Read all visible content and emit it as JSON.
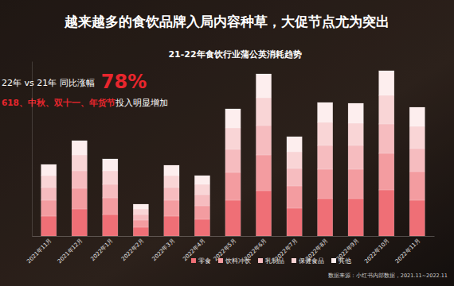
{
  "chart_data": {
    "type": "bar",
    "title": "越来越多的食饮品牌入局内容种草，大促节点尤为突出",
    "subtitle": "21-22年食饮行业蒲公英消耗趋势",
    "annotations": [
      {
        "text": "22年 vs 21年 同比涨幅"
      },
      {
        "text": "78%"
      },
      {
        "text": "618、中秋、双十一、年货节"
      },
      {
        "text": "投入明显增加"
      },
      {
        "text": "数据来源：小红书内部数据，2021.11~2022.11"
      }
    ],
    "categories": [
      "2021年11月",
      "2021年12月",
      "2022年1月",
      "2022年2月",
      "2022年3月",
      "2022年4月",
      "2022年5月",
      "2022年6月",
      "2022年7月",
      "2022年8月",
      "2022年9月",
      "2022年10月",
      "2022年11月"
    ],
    "series": [
      {
        "name": "零食",
        "color": "#ef6f76",
        "values": [
          25,
          34,
          27,
          11,
          25,
          21,
          45,
          57,
          35,
          47,
          47,
          58,
          45
        ]
      },
      {
        "name": "饮料冲饮",
        "color": "#f39ca0",
        "values": [
          20,
          26,
          21,
          9,
          20,
          17,
          35,
          45,
          28,
          37,
          37,
          46,
          36
        ]
      },
      {
        "name": "乳制品",
        "color": "#f6bcbf",
        "values": [
          16,
          22,
          17,
          7,
          16,
          14,
          29,
          37,
          22,
          30,
          30,
          37,
          29
        ]
      },
      {
        "name": "保健食品",
        "color": "#f9d5d6",
        "values": [
          15,
          20,
          17,
          7,
          15,
          13,
          27,
          35,
          21,
          29,
          28,
          36,
          28
        ]
      },
      {
        "name": "其他",
        "color": "#fdeeee",
        "values": [
          14,
          18,
          15,
          6,
          13,
          11,
          24,
          30,
          19,
          25,
          25,
          31,
          24
        ]
      }
    ],
    "stacked": true,
    "ylim": [
      0,
      220
    ],
    "yticks": [],
    "tick_labels": "x",
    "legend": "bottom-right"
  }
}
